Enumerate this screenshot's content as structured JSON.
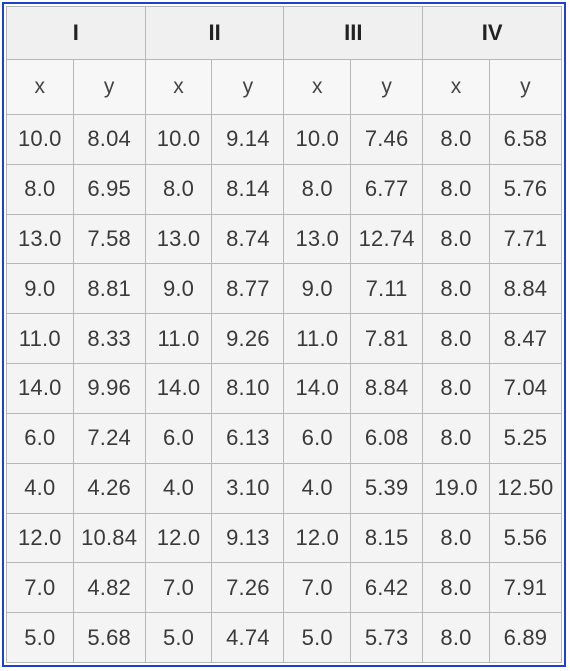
{
  "chart_data": {
    "type": "table",
    "groups": [
      "I",
      "II",
      "III",
      "IV"
    ],
    "columns": [
      "x",
      "y"
    ],
    "rows": [
      [
        "10.0",
        "8.04",
        "10.0",
        "9.14",
        "10.0",
        "7.46",
        "8.0",
        "6.58"
      ],
      [
        "8.0",
        "6.95",
        "8.0",
        "8.14",
        "8.0",
        "6.77",
        "8.0",
        "5.76"
      ],
      [
        "13.0",
        "7.58",
        "13.0",
        "8.74",
        "13.0",
        "12.74",
        "8.0",
        "7.71"
      ],
      [
        "9.0",
        "8.81",
        "9.0",
        "8.77",
        "9.0",
        "7.11",
        "8.0",
        "8.84"
      ],
      [
        "11.0",
        "8.33",
        "11.0",
        "9.26",
        "11.0",
        "7.81",
        "8.0",
        "8.47"
      ],
      [
        "14.0",
        "9.96",
        "14.0",
        "8.10",
        "14.0",
        "8.84",
        "8.0",
        "7.04"
      ],
      [
        "6.0",
        "7.24",
        "6.0",
        "6.13",
        "6.0",
        "6.08",
        "8.0",
        "5.25"
      ],
      [
        "4.0",
        "4.26",
        "4.0",
        "3.10",
        "4.0",
        "5.39",
        "19.0",
        "12.50"
      ],
      [
        "12.0",
        "10.84",
        "12.0",
        "9.13",
        "12.0",
        "8.15",
        "8.0",
        "5.56"
      ],
      [
        "7.0",
        "4.82",
        "7.0",
        "7.26",
        "7.0",
        "6.42",
        "8.0",
        "7.91"
      ],
      [
        "5.0",
        "5.68",
        "5.0",
        "4.74",
        "5.0",
        "5.73",
        "8.0",
        "6.89"
      ]
    ]
  },
  "colors": {
    "frame_border": "#1f3fd1",
    "cell_border": "#b7b7b7",
    "cell_background": "#f4f4f4",
    "header_background": "#f0f0f0",
    "text": "#3a3a3a"
  }
}
